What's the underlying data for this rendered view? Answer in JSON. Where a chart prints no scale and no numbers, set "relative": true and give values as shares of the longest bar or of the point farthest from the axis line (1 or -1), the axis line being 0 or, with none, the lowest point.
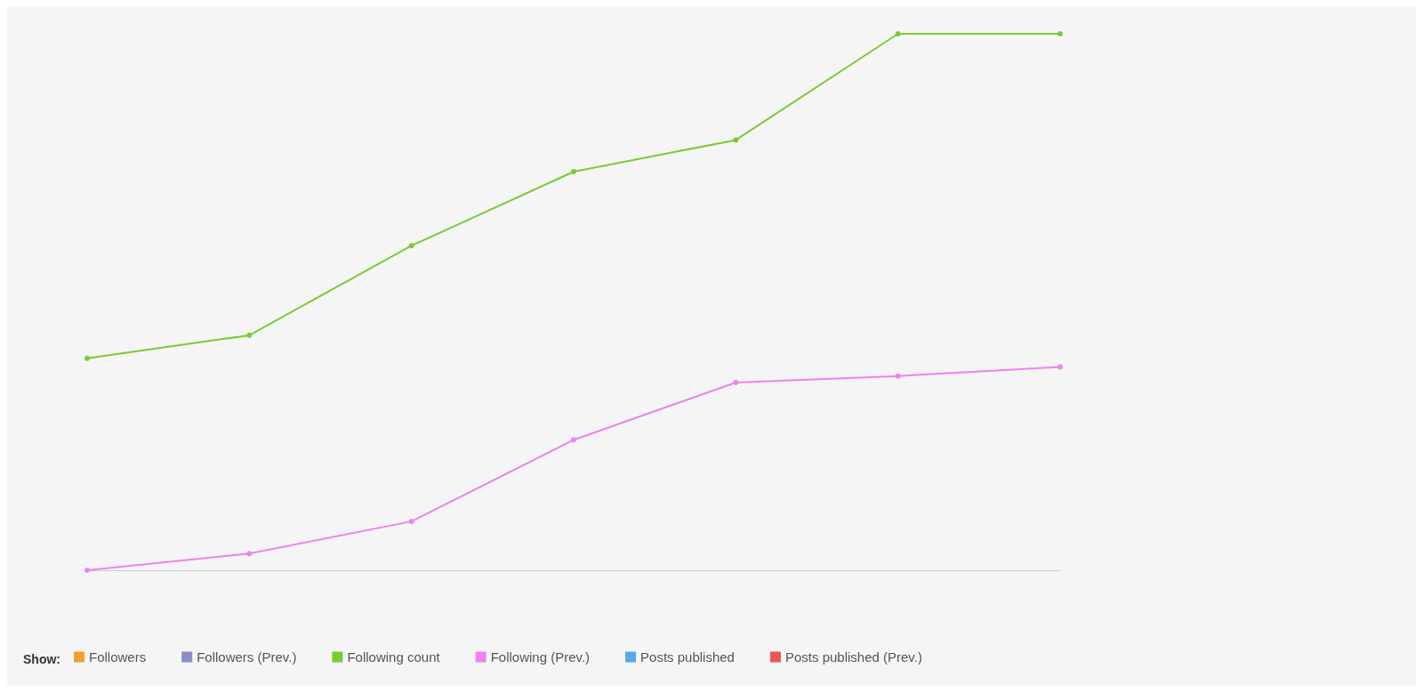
{
  "chart_data": {
    "type": "line",
    "relative": true,
    "categories": [
      null,
      null,
      null,
      null,
      null,
      null,
      null
    ],
    "legend": "bottom left",
    "legend_title": "Show:",
    "marker": "circle",
    "series": [
      {
        "name": "Followers",
        "color": "#f0a030",
        "values": [
          null,
          null,
          null,
          null,
          null,
          null,
          null
        ]
      },
      {
        "name": "Followers (Prev.)",
        "color": "#8c8cc8",
        "values": [
          null,
          null,
          null,
          null,
          null,
          null,
          null
        ]
      },
      {
        "name": "Following count",
        "color": "#77cc33",
        "values": [
          0.395,
          0.438,
          0.605,
          0.743,
          0.802,
          1,
          1
        ]
      },
      {
        "name": "Following (Prev.)",
        "color": "#ee82ee",
        "values": [
          0,
          0.031,
          0.091,
          0.243,
          0.35,
          0.362,
          0.379
        ]
      },
      {
        "name": "Posts published",
        "color": "#55aaee",
        "values": [
          null,
          null,
          null,
          null,
          null,
          null,
          null
        ]
      },
      {
        "name": "Posts published (Prev.)",
        "color": "#ee5555",
        "values": [
          null,
          null,
          null,
          null,
          null,
          null,
          null
        ]
      }
    ]
  }
}
